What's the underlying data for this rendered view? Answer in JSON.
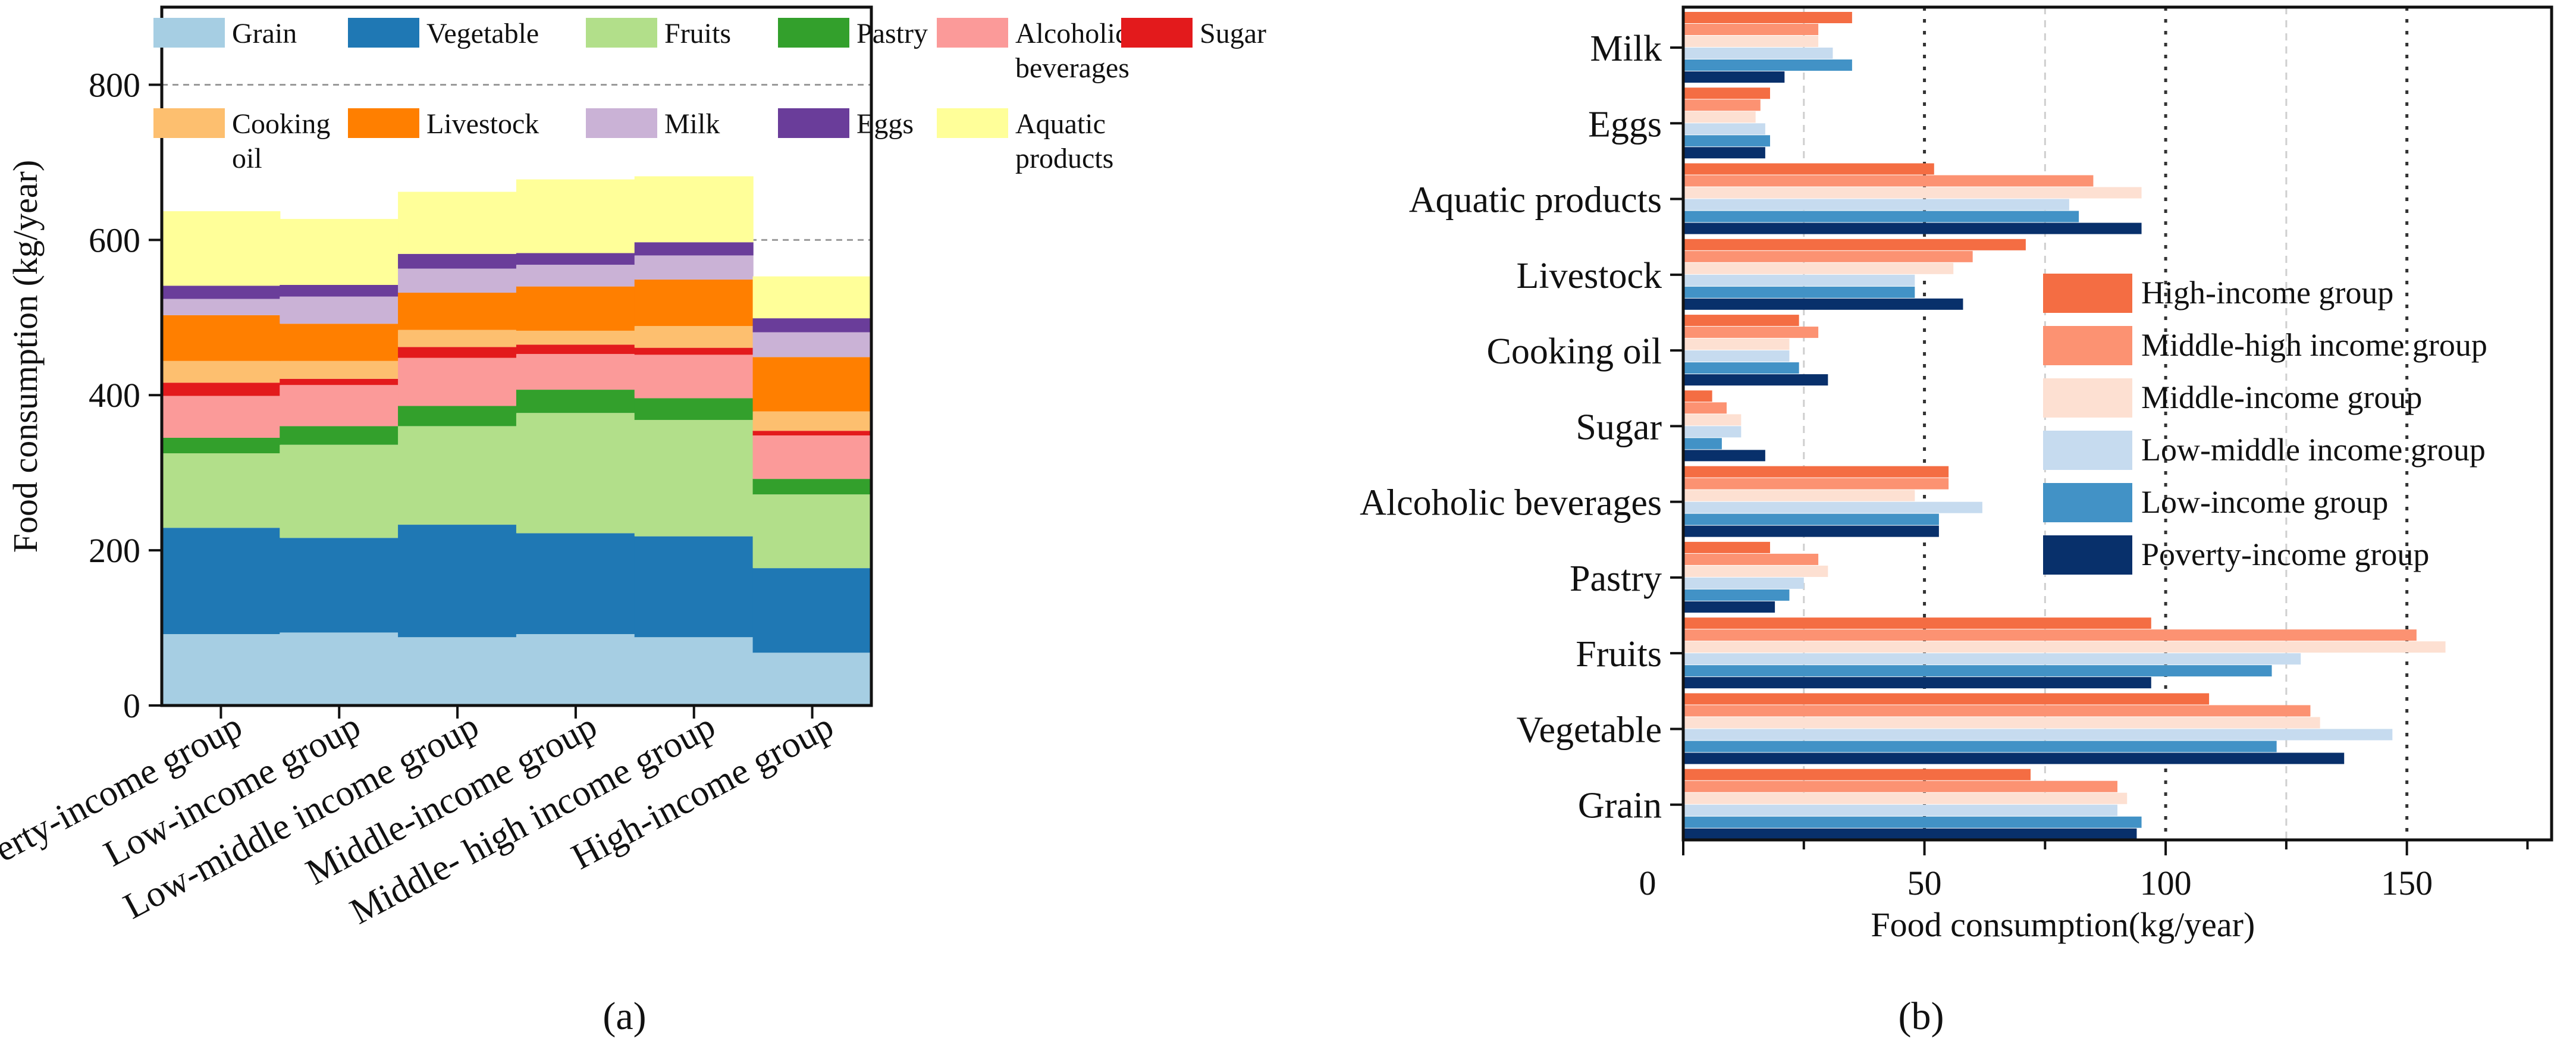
{
  "panel_a_label": "(a)",
  "panel_b_label": "(b)",
  "colors": {
    "Grain": "#a6cee3",
    "Vegetable": "#1f78b4",
    "Fruits": "#b2df8a",
    "Pastry": "#33a02c",
    "Alcoholic beverages": "#fb9a99",
    "Sugar": "#e31a1c",
    "Cooking oil": "#fdbf6f",
    "Livestock": "#ff7f00",
    "Milk": "#cab2d6",
    "Eggs": "#6a3d9a",
    "Aquatic products": "#ffff99",
    "High-income group": "#f46d43",
    "Middle-high income group": "#fc9272",
    "Middle-income group": "#fde0d2",
    "Low-middle income group": "#c6dbef",
    "Low-income group": "#4292c6",
    "Poverty-income group": "#08306b"
  },
  "chart_data": [
    {
      "type": "bar",
      "stacked": true,
      "orientation": "vertical",
      "ylabel": "Food consumption (kg/year)",
      "ylim": [
        0,
        900
      ],
      "yticks": [
        0,
        200,
        400,
        600,
        800
      ],
      "grid": true,
      "legend_placement": "top, inside plot",
      "categories": [
        "Poverty-income group",
        "Low-income group",
        "Low-middle income group",
        "Middle-income group",
        "Middle- high income group",
        "High-income group"
      ],
      "legend_labels": [
        "Grain",
        "Vegetable",
        "Fruits",
        "Pastry",
        "Alcoholic beverages",
        "Sugar",
        "Cooking oil",
        "Livestock",
        "Milk",
        "Eggs",
        "Aquatic products"
      ],
      "series": [
        {
          "name": "Grain",
          "values": [
            92,
            94,
            88,
            92,
            88,
            68
          ]
        },
        {
          "name": "Vegetable",
          "values": [
            137,
            122,
            145,
            130,
            130,
            109
          ]
        },
        {
          "name": "Fruits",
          "values": [
            96,
            120,
            127,
            155,
            150,
            95
          ]
        },
        {
          "name": "Pastry",
          "values": [
            20,
            24,
            26,
            30,
            28,
            20
          ]
        },
        {
          "name": "Alcoholic beverages",
          "values": [
            54,
            53,
            62,
            46,
            56,
            56
          ]
        },
        {
          "name": "Sugar",
          "values": [
            17,
            8,
            14,
            12,
            9,
            6
          ]
        },
        {
          "name": "Cooking oil",
          "values": [
            28,
            23,
            22,
            18,
            28,
            25
          ]
        },
        {
          "name": "Livestock",
          "values": [
            59,
            48,
            48,
            57,
            60,
            70
          ]
        },
        {
          "name": "Milk",
          "values": [
            21,
            35,
            31,
            28,
            31,
            32
          ]
        },
        {
          "name": "Eggs",
          "values": [
            17,
            15,
            19,
            15,
            17,
            18
          ]
        },
        {
          "name": "Aquatic products",
          "values": [
            96,
            85,
            80,
            95,
            85,
            54
          ]
        }
      ]
    },
    {
      "type": "bar",
      "orientation": "horizontal",
      "xlabel": "Food consumption(kg/year)",
      "xlim": [
        0,
        180
      ],
      "xticks": [
        0,
        50,
        100,
        150
      ],
      "grid": true,
      "legend_placement": "right, inside plot",
      "categories": [
        "Milk",
        "Eggs",
        "Aquatic products",
        "Livestock",
        "Cooking oil",
        "Sugar",
        "Alcoholic beverages",
        "Pastry",
        "Fruits",
        "Vegetable",
        "Grain"
      ],
      "series": [
        {
          "name": "High-income group",
          "values": [
            35,
            18,
            52,
            71,
            24,
            6,
            55,
            18,
            97,
            109,
            72
          ]
        },
        {
          "name": "Middle-high income group",
          "values": [
            28,
            16,
            85,
            60,
            28,
            9,
            55,
            28,
            152,
            130,
            90
          ]
        },
        {
          "name": "Middle-income group",
          "values": [
            28,
            15,
            95,
            56,
            22,
            12,
            48,
            30,
            158,
            132,
            92
          ]
        },
        {
          "name": "Low-middle income group",
          "values": [
            31,
            17,
            80,
            48,
            22,
            12,
            62,
            25,
            128,
            147,
            90
          ]
        },
        {
          "name": "Low-income group",
          "values": [
            35,
            18,
            82,
            48,
            24,
            8,
            53,
            22,
            122,
            123,
            95
          ]
        },
        {
          "name": "Poverty-income group",
          "values": [
            21,
            17,
            95,
            58,
            30,
            17,
            53,
            19,
            97,
            137,
            94
          ]
        }
      ]
    }
  ]
}
